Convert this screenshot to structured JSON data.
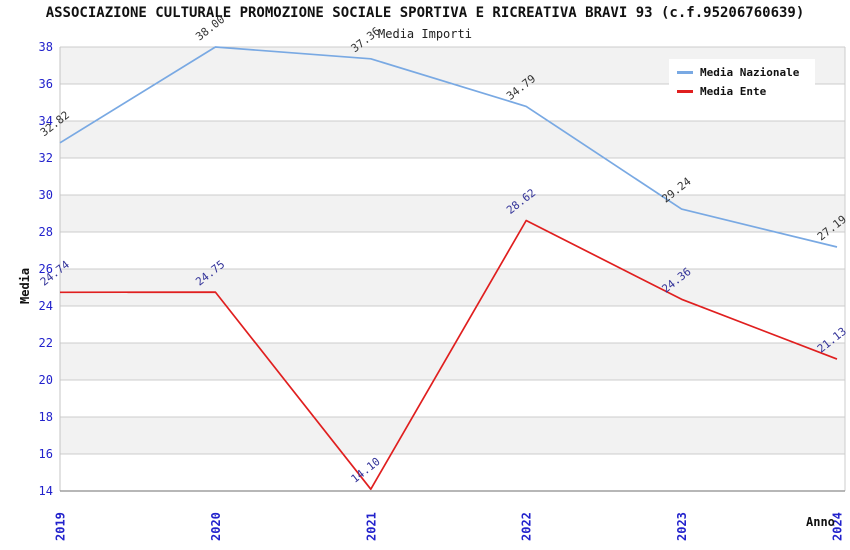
{
  "chart_data": {
    "type": "line",
    "title": "ASSOCIAZIONE CULTURALE PROMOZIONE SOCIALE SPORTIVA E RICREATIVA BRAVI 93 (c.f.95206760639)",
    "subtitle": "Media Importi",
    "xlabel": "Anno",
    "ylabel": "Media",
    "x": [
      "2019",
      "2020",
      "2021",
      "2022",
      "2023",
      "2024"
    ],
    "ylim": [
      14,
      38
    ],
    "ytick_step": 2,
    "grid": "horizontal",
    "legend_position": "top-right",
    "band_color": "#f2f2f2",
    "gridline_color": "#cccccc",
    "axis_line_color": "#8c8c8c",
    "tick_label_color": "#2222cc",
    "series": [
      {
        "name": "Media Nazionale",
        "color": "#79a9e3",
        "label_color": "#333333",
        "values": [
          32.82,
          38.0,
          37.36,
          34.79,
          29.24,
          27.19
        ]
      },
      {
        "name": "Media Ente",
        "color": "#e01f1f",
        "label_color": "#333399",
        "values": [
          24.74,
          24.75,
          14.1,
          28.62,
          24.36,
          21.13
        ]
      }
    ]
  }
}
